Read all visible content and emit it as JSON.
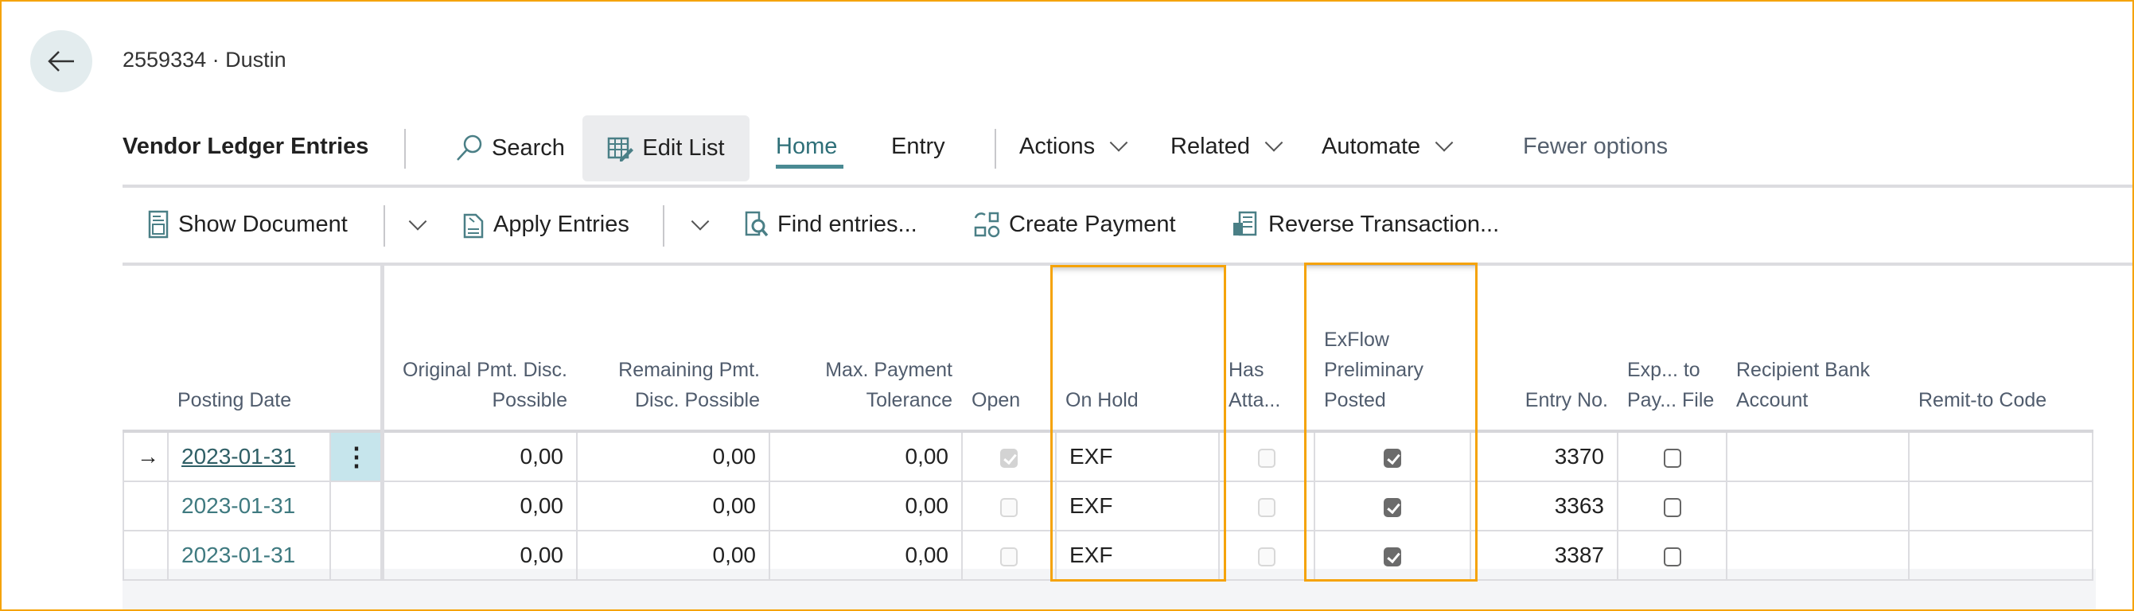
{
  "header": {
    "title": "2559334 · Dustin",
    "back_icon": "arrow-left-icon"
  },
  "actionbar": {
    "page_name": "Vendor Ledger Entries",
    "search": "Search",
    "edit_list": "Edit List",
    "tabs": [
      "Home",
      "Entry"
    ],
    "active_tab": "Home",
    "menus": [
      "Actions",
      "Related",
      "Automate"
    ],
    "fewer_options": "Fewer options"
  },
  "toolbar": {
    "show_document": "Show Document",
    "apply_entries": "Apply Entries",
    "find_entries": "Find entries...",
    "create_payment": "Create Payment",
    "reverse_transaction": "Reverse Transaction..."
  },
  "table": {
    "columns": [
      "",
      "Posting Date",
      "",
      "Original Pmt. Disc. Possible",
      "Remaining Pmt. Disc. Possible",
      "Max. Payment Tolerance",
      "Open",
      "On Hold",
      "Has Atta...",
      "ExFlow Preliminary Posted",
      "Entry No.",
      "Exp... to Pay... File",
      "Recipient Bank Account",
      "Remit-to Code"
    ],
    "rows": [
      {
        "posting_date": "2023-01-31",
        "orig": "0,00",
        "rem": "0,00",
        "max": "0,00",
        "open": true,
        "on_hold": "EXF",
        "has_att": false,
        "exflow_posted": true,
        "entry_no": "3370",
        "exported": false,
        "recipient": "",
        "remit": "",
        "selected": true
      },
      {
        "posting_date": "2023-01-31",
        "orig": "0,00",
        "rem": "0,00",
        "max": "0,00",
        "open": false,
        "on_hold": "EXF",
        "has_att": false,
        "exflow_posted": true,
        "entry_no": "3363",
        "exported": false,
        "recipient": "",
        "remit": "",
        "selected": false
      },
      {
        "posting_date": "2023-01-31",
        "orig": "0,00",
        "rem": "0,00",
        "max": "0,00",
        "open": false,
        "on_hold": "EXF",
        "has_att": false,
        "exflow_posted": true,
        "entry_no": "3387",
        "exported": false,
        "recipient": "",
        "remit": "",
        "selected": false
      }
    ],
    "highlighted_columns": [
      "On Hold",
      "ExFlow Preliminary Posted"
    ]
  },
  "colors": {
    "accent": "#4a8a93",
    "highlight": "#f5a30a",
    "selection": "#c6e5ec"
  }
}
